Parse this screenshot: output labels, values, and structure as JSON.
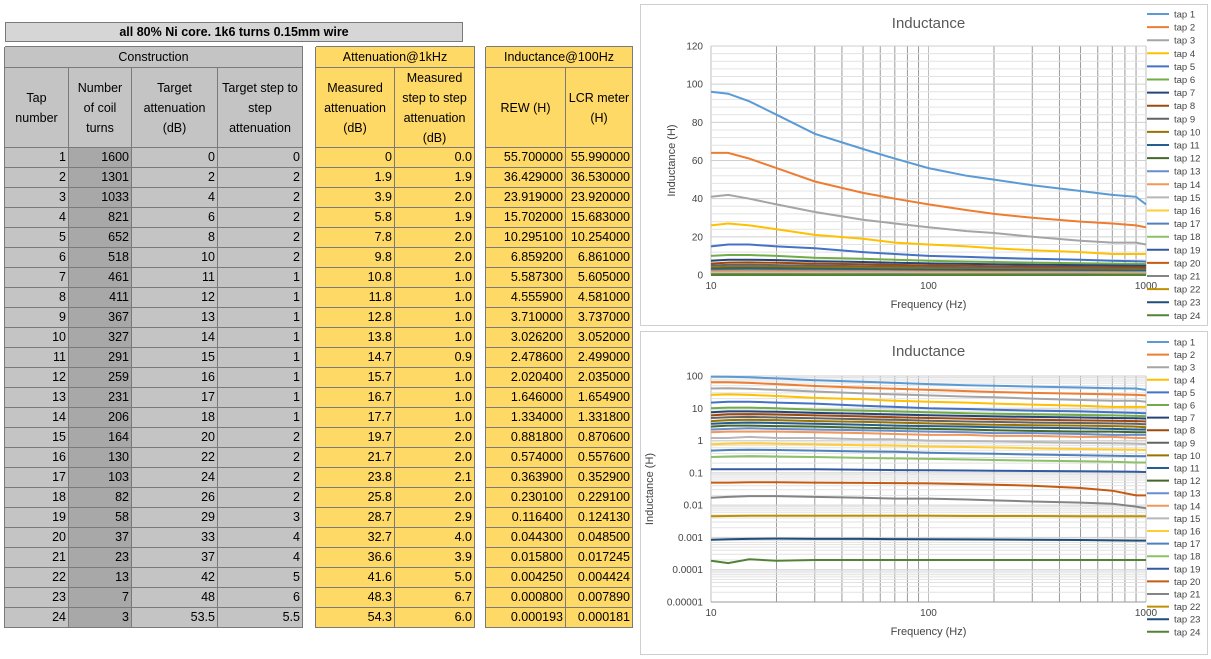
{
  "sheet": {
    "title": "all 80% Ni core. 1k6 turns 0.15mm wire",
    "groups": {
      "construction": "Construction",
      "attenuation": "Attenuation@1kHz",
      "inductance": "Inductance@100Hz"
    },
    "headers": {
      "tap": "Tap number",
      "turns": "Number of coil turns",
      "target_att": "Target attenuation (dB)",
      "target_step": "Target step to step attenuation",
      "meas_att": "Measured attenuation (dB)",
      "meas_step": "Measured step to step attenuation (dB)",
      "rew": "REW (H)",
      "lcr": "LCR meter (H)"
    },
    "rows": [
      [
        "1",
        "1600",
        "0",
        "0",
        "0",
        "0.0",
        "55.700000",
        "55.990000"
      ],
      [
        "2",
        "1301",
        "2",
        "2",
        "1.9",
        "1.9",
        "36.429000",
        "36.530000"
      ],
      [
        "3",
        "1033",
        "4",
        "2",
        "3.9",
        "2.0",
        "23.919000",
        "23.920000"
      ],
      [
        "4",
        "821",
        "6",
        "2",
        "5.8",
        "1.9",
        "15.702000",
        "15.683000"
      ],
      [
        "5",
        "652",
        "8",
        "2",
        "7.8",
        "2.0",
        "10.295100",
        "10.254000"
      ],
      [
        "6",
        "518",
        "10",
        "2",
        "9.8",
        "2.0",
        "6.859200",
        "6.861000"
      ],
      [
        "7",
        "461",
        "11",
        "1",
        "10.8",
        "1.0",
        "5.587300",
        "5.605000"
      ],
      [
        "8",
        "411",
        "12",
        "1",
        "11.8",
        "1.0",
        "4.555900",
        "4.581000"
      ],
      [
        "9",
        "367",
        "13",
        "1",
        "12.8",
        "1.0",
        "3.710000",
        "3.737000"
      ],
      [
        "10",
        "327",
        "14",
        "1",
        "13.8",
        "1.0",
        "3.026200",
        "3.052000"
      ],
      [
        "11",
        "291",
        "15",
        "1",
        "14.7",
        "0.9",
        "2.478600",
        "2.499000"
      ],
      [
        "12",
        "259",
        "16",
        "1",
        "15.7",
        "1.0",
        "2.020400",
        "2.035000"
      ],
      [
        "13",
        "231",
        "17",
        "1",
        "16.7",
        "1.0",
        "1.646000",
        "1.654900"
      ],
      [
        "14",
        "206",
        "18",
        "1",
        "17.7",
        "1.0",
        "1.334000",
        "1.331800"
      ],
      [
        "15",
        "164",
        "20",
        "2",
        "19.7",
        "2.0",
        "0.881800",
        "0.870600"
      ],
      [
        "16",
        "130",
        "22",
        "2",
        "21.7",
        "2.0",
        "0.574000",
        "0.557600"
      ],
      [
        "17",
        "103",
        "24",
        "2",
        "23.8",
        "2.1",
        "0.363900",
        "0.352900"
      ],
      [
        "18",
        "82",
        "26",
        "2",
        "25.8",
        "2.0",
        "0.230100",
        "0.229100"
      ],
      [
        "19",
        "58",
        "29",
        "3",
        "28.7",
        "2.9",
        "0.116400",
        "0.124130"
      ],
      [
        "20",
        "37",
        "33",
        "4",
        "32.7",
        "4.0",
        "0.044300",
        "0.048500"
      ],
      [
        "21",
        "23",
        "37",
        "4",
        "36.6",
        "3.9",
        "0.015800",
        "0.017245"
      ],
      [
        "22",
        "13",
        "42",
        "5",
        "41.6",
        "5.0",
        "0.004250",
        "0.004424"
      ],
      [
        "23",
        "7",
        "48",
        "6",
        "48.3",
        "6.7",
        "0.000800",
        "0.007890"
      ],
      [
        "24",
        "3",
        "53.5",
        "5.5",
        "54.3",
        "6.0",
        "0.000193",
        "0.000181"
      ]
    ]
  },
  "chart_data": [
    {
      "type": "line",
      "title": "Inductance",
      "xlabel": "Frequency (Hz)",
      "ylabel": "Inductance (H)",
      "xscale": "log",
      "xlim": [
        10,
        1000
      ],
      "ylim": [
        0,
        120
      ],
      "yticks": [
        "0",
        "20",
        "40",
        "60",
        "80",
        "100",
        "120"
      ],
      "xticks": [
        "10",
        "100",
        "1000"
      ],
      "grid": true,
      "legend": "right",
      "x": [
        10,
        12,
        15,
        20,
        30,
        50,
        70,
        100,
        150,
        200,
        300,
        500,
        700,
        900,
        1000
      ],
      "series": [
        {
          "name": "tap 1",
          "color": "#5b9bd5",
          "values": [
            96,
            95,
            91,
            84,
            74,
            66,
            61,
            56,
            52,
            50,
            47,
            44,
            42,
            41,
            37
          ]
        },
        {
          "name": "tap 2",
          "color": "#ed7d31",
          "values": [
            64,
            64,
            61,
            56,
            49,
            43,
            40,
            37,
            34,
            32,
            30,
            28,
            27,
            26,
            25
          ]
        },
        {
          "name": "tap 3",
          "color": "#a5a5a5",
          "values": [
            41,
            42,
            40,
            37,
            33,
            29,
            27,
            25,
            23,
            22,
            20,
            18,
            17,
            17,
            16
          ]
        },
        {
          "name": "tap 4",
          "color": "#ffc000",
          "values": [
            26,
            27,
            26,
            24,
            21,
            19,
            17,
            16,
            15,
            14,
            13,
            12,
            11,
            11,
            11
          ]
        },
        {
          "name": "tap 5",
          "color": "#4472c4",
          "values": [
            15,
            16,
            16,
            15,
            14,
            12,
            11,
            10,
            9.5,
            9,
            8.5,
            8,
            7.5,
            7.2,
            7
          ]
        },
        {
          "name": "tap 6",
          "color": "#70ad47",
          "values": [
            10,
            10.5,
            10.5,
            10,
            9,
            8.5,
            8,
            7.5,
            7,
            6.8,
            6.5,
            6.2,
            6,
            5.8,
            5.7
          ]
        },
        {
          "name": "tap 7",
          "color": "#264478",
          "values": [
            7.5,
            8,
            8,
            7.8,
            7.2,
            6.8,
            6.4,
            6.1,
            5.8,
            5.6,
            5.4,
            5.2,
            5,
            4.9,
            4.8
          ]
        },
        {
          "name": "tap 8",
          "color": "#9e480e",
          "values": [
            6,
            6.5,
            6.6,
            6.4,
            6,
            5.6,
            5.3,
            5,
            4.8,
            4.6,
            4.4,
            4.2,
            4.1,
            4,
            3.9
          ]
        },
        {
          "name": "tap 9",
          "color": "#636363",
          "values": [
            5,
            5.3,
            5.4,
            5.2,
            4.9,
            4.6,
            4.4,
            4.1,
            3.9,
            3.8,
            3.6,
            3.5,
            3.4,
            3.3,
            3.2
          ]
        },
        {
          "name": "tap 10",
          "color": "#997300",
          "values": [
            4,
            4.3,
            4.4,
            4.3,
            4,
            3.8,
            3.6,
            3.4,
            3.2,
            3.1,
            3,
            2.9,
            2.8,
            2.7,
            2.6
          ]
        },
        {
          "name": "tap 11",
          "color": "#255e91",
          "values": [
            3.3,
            3.5,
            3.6,
            3.5,
            3.3,
            3.1,
            2.9,
            2.8,
            2.7,
            2.6,
            2.5,
            2.4,
            2.3,
            2.2,
            2.2
          ]
        },
        {
          "name": "tap 12",
          "color": "#43682b",
          "values": [
            2.7,
            2.9,
            2.9,
            2.8,
            2.7,
            2.5,
            2.4,
            2.3,
            2.2,
            2.1,
            2,
            1.9,
            1.9,
            1.8,
            1.8
          ]
        },
        {
          "name": "tap 13",
          "color": "#698ed0",
          "values": [
            2.2,
            2.3,
            2.4,
            2.3,
            2.2,
            2.1,
            2,
            1.9,
            1.8,
            1.7,
            1.7,
            1.6,
            1.5,
            1.5,
            1.5
          ]
        },
        {
          "name": "tap 14",
          "color": "#f1975a",
          "values": [
            1.8,
            1.9,
            1.9,
            1.9,
            1.8,
            1.7,
            1.6,
            1.5,
            1.5,
            1.4,
            1.4,
            1.3,
            1.3,
            1.2,
            1.2
          ]
        },
        {
          "name": "tap 15",
          "color": "#b7b7b7",
          "values": [
            1.2,
            1.2,
            1.3,
            1.2,
            1.2,
            1.1,
            1.1,
            1,
            0.97,
            0.94,
            0.9,
            0.86,
            0.83,
            0.8,
            0.78
          ]
        },
        {
          "name": "tap 16",
          "color": "#ffcd33",
          "values": [
            0.77,
            0.8,
            0.82,
            0.8,
            0.77,
            0.72,
            0.7,
            0.66,
            0.63,
            0.61,
            0.58,
            0.55,
            0.53,
            0.52,
            0.51
          ]
        },
        {
          "name": "tap 17",
          "color": "#4f81bd",
          "values": [
            0.49,
            0.51,
            0.52,
            0.51,
            0.49,
            0.46,
            0.45,
            0.42,
            0.4,
            0.39,
            0.37,
            0.35,
            0.34,
            0.33,
            0.33
          ]
        },
        {
          "name": "tap 18",
          "color": "#8cc168",
          "values": [
            0.31,
            0.32,
            0.33,
            0.32,
            0.31,
            0.29,
            0.28,
            0.27,
            0.26,
            0.25,
            0.24,
            0.23,
            0.22,
            0.21,
            0.21
          ]
        },
        {
          "name": "tap 19",
          "color": "#335aa1",
          "values": [
            0.13,
            0.13,
            0.13,
            0.13,
            0.13,
            0.125,
            0.122,
            0.12,
            0.118,
            0.116,
            0.114,
            0.112,
            0.11,
            0.108,
            0.106
          ]
        },
        {
          "name": "tap 20",
          "color": "#c55a11",
          "values": [
            0.05,
            0.05,
            0.051,
            0.051,
            0.05,
            0.049,
            0.048,
            0.047,
            0.045,
            0.043,
            0.04,
            0.034,
            0.028,
            0.02,
            0.02
          ]
        },
        {
          "name": "tap 21",
          "color": "#848484",
          "values": [
            0.017,
            0.018,
            0.019,
            0.019,
            0.018,
            0.017,
            0.016,
            0.016,
            0.015,
            0.014,
            0.013,
            0.012,
            0.011,
            0.009,
            0.008
          ]
        },
        {
          "name": "tap 22",
          "color": "#bf9000",
          "values": [
            0.0045,
            0.0046,
            0.0047,
            0.0047,
            0.0047,
            0.0047,
            0.0047,
            0.0047,
            0.0046,
            0.0046,
            0.0046,
            0.0045,
            0.0045,
            0.0045,
            0.0045
          ]
        },
        {
          "name": "tap 23",
          "color": "#1f4e79",
          "values": [
            0.00085,
            0.00088,
            0.0009,
            0.00092,
            0.0009,
            0.0009,
            0.00089,
            0.00088,
            0.00087,
            0.00086,
            0.00085,
            0.00083,
            0.00081,
            0.0008,
            0.0008
          ]
        },
        {
          "name": "tap 24",
          "color": "#548235",
          "values": [
            0.00019,
            0.00016,
            0.00021,
            0.00019,
            0.0002,
            0.0002,
            0.0002,
            0.0002,
            0.0002,
            0.0002,
            0.0002,
            0.0002,
            0.0002,
            0.0002,
            0.0002
          ]
        }
      ]
    },
    {
      "type": "line",
      "title": "Inductance",
      "xlabel": "Frequency (Hz)",
      "ylabel": "Inductance (H)",
      "xscale": "log",
      "yscale": "log",
      "xlim": [
        10,
        1000
      ],
      "ylim": [
        1e-05,
        100
      ],
      "yticks": [
        "0.00001",
        "0.0001",
        "0.001",
        "0.01",
        "0.1",
        "1",
        "10",
        "100"
      ],
      "xticks": [
        "10",
        "100",
        "1000"
      ],
      "grid": true,
      "legend": "right",
      "same_series_as": "chart 1"
    }
  ]
}
